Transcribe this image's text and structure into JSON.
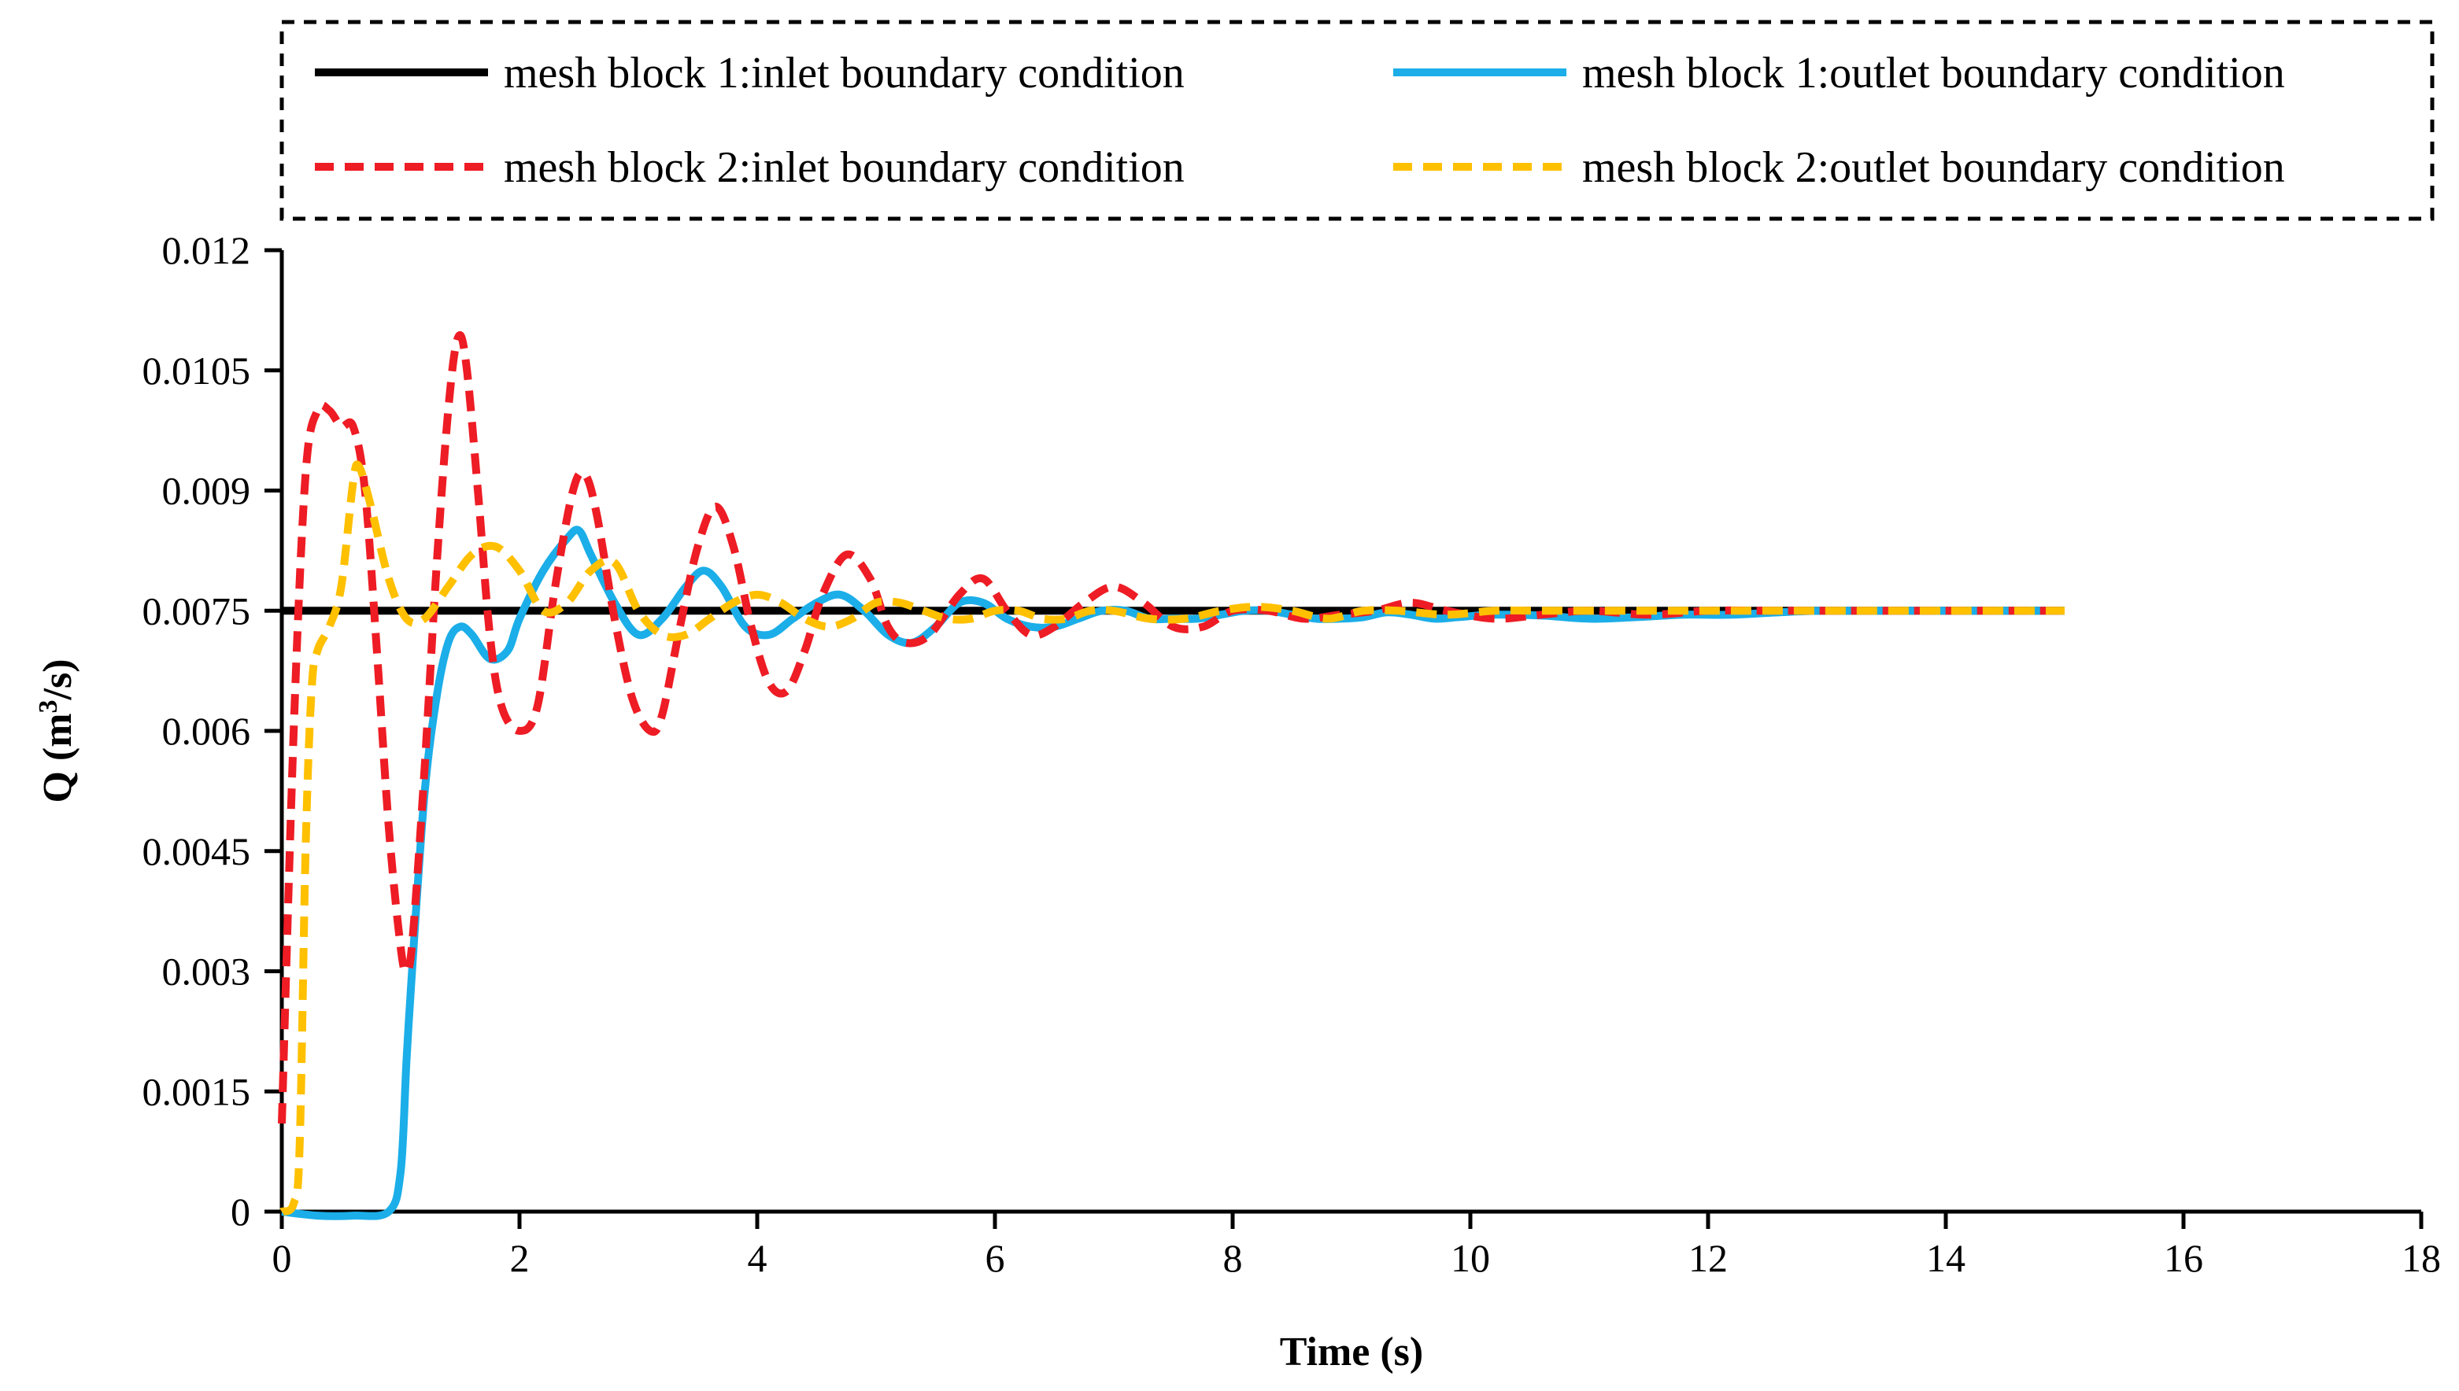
{
  "chart_data": {
    "type": "line",
    "title": "",
    "xlabel": "Time (s)",
    "ylabel_main": "Q (m",
    "ylabel_sup": "3",
    "ylabel_tail": "/s)",
    "xlim": [
      0,
      18
    ],
    "ylim": [
      0,
      0.012
    ],
    "x_ticks": [
      0,
      2,
      4,
      6,
      8,
      10,
      12,
      14,
      16,
      18
    ],
    "x_tick_labels": [
      "0",
      "2",
      "4",
      "6",
      "8",
      "10",
      "12",
      "14",
      "16",
      "18"
    ],
    "y_ticks": [
      0,
      0.0015,
      0.003,
      0.0045,
      0.006,
      0.0075,
      0.009,
      0.0105,
      0.012
    ],
    "y_tick_labels": [
      "0",
      "0.0015",
      "0.003",
      "0.0045",
      "0.006",
      "0.0075",
      "0.009",
      "0.0105",
      "0.012"
    ],
    "grid": false,
    "legend_position": "top",
    "series": [
      {
        "name": "mesh block 1:inlet boundary condition",
        "color": "#000000",
        "style": "solid",
        "x": [
          0,
          15
        ],
        "y": [
          0.0075,
          0.0075
        ]
      },
      {
        "name": "mesh block 1:outlet boundary condition",
        "color": "#1BAEE8",
        "style": "solid",
        "x": [
          0,
          0.3,
          0.6,
          0.9,
          1.0,
          1.05,
          1.1,
          1.2,
          1.3,
          1.4,
          1.5,
          1.6,
          1.75,
          1.9,
          2.0,
          2.2,
          2.4,
          2.5,
          2.6,
          2.8,
          3.0,
          3.2,
          3.4,
          3.55,
          3.7,
          3.9,
          4.1,
          4.3,
          4.5,
          4.7,
          4.9,
          5.1,
          5.3,
          5.5,
          5.7,
          5.9,
          6.1,
          6.3,
          6.5,
          6.7,
          6.9,
          7.1,
          7.3,
          7.5,
          7.7,
          7.9,
          8.1,
          8.3,
          8.5,
          8.7,
          8.9,
          9.1,
          9.3,
          9.5,
          9.7,
          9.9,
          10.2,
          10.6,
          11.0,
          11.4,
          11.8,
          12.2,
          12.6,
          13.0,
          14.0,
          15.0
        ],
        "y": [
          0.0,
          -5e-05,
          -5e-05,
          0.0,
          0.0005,
          0.0019,
          0.0031,
          0.0052,
          0.0064,
          0.0071,
          0.0073,
          0.0072,
          0.0069,
          0.007,
          0.0074,
          0.008,
          0.0084,
          0.0085,
          0.0082,
          0.0076,
          0.0072,
          0.0074,
          0.0078,
          0.008,
          0.0078,
          0.0073,
          0.0072,
          0.0074,
          0.0076,
          0.0077,
          0.0075,
          0.0072,
          0.0071,
          0.0073,
          0.0076,
          0.0076,
          0.0074,
          0.0073,
          0.0073,
          0.0074,
          0.0075,
          0.0075,
          0.0074,
          0.0074,
          0.0074,
          0.00745,
          0.0075,
          0.0075,
          0.00745,
          0.0074,
          0.0074,
          0.00742,
          0.00748,
          0.00745,
          0.0074,
          0.00742,
          0.00745,
          0.00744,
          0.0074,
          0.00742,
          0.00745,
          0.00745,
          0.00748,
          0.0075,
          0.0075,
          0.0075
        ]
      },
      {
        "name": "mesh block 2:inlet boundary condition",
        "color": "#EE1C24",
        "style": "dashed",
        "x": [
          0,
          0.1,
          0.2,
          0.3,
          0.4,
          0.5,
          0.6,
          0.7,
          0.8,
          0.9,
          1.0,
          1.05,
          1.1,
          1.2,
          1.3,
          1.4,
          1.48,
          1.55,
          1.65,
          1.75,
          1.85,
          2.0,
          2.15,
          2.3,
          2.45,
          2.55,
          2.65,
          2.8,
          2.95,
          3.1,
          3.2,
          3.35,
          3.5,
          3.65,
          3.8,
          3.95,
          4.1,
          4.25,
          4.4,
          4.55,
          4.75,
          4.95,
          5.1,
          5.25,
          5.45,
          5.7,
          5.9,
          6.1,
          6.3,
          6.5,
          6.75,
          7.0,
          7.25,
          7.5,
          7.75,
          8.0,
          8.3,
          8.6,
          8.9,
          9.2,
          9.5,
          9.8,
          10.2,
          10.6,
          11.0,
          11.5,
          12.0,
          12.5,
          13.0,
          14.0,
          15.0
        ],
        "y": [
          0.0011,
          0.006,
          0.0092,
          0.01,
          0.01,
          0.0098,
          0.0098,
          0.009,
          0.007,
          0.0048,
          0.0033,
          0.003,
          0.0034,
          0.0055,
          0.008,
          0.01,
          0.0109,
          0.0106,
          0.009,
          0.0072,
          0.0063,
          0.006,
          0.0063,
          0.0078,
          0.009,
          0.0092,
          0.0087,
          0.0074,
          0.0064,
          0.006,
          0.0062,
          0.0073,
          0.0083,
          0.0088,
          0.0083,
          0.0073,
          0.0066,
          0.0065,
          0.007,
          0.0077,
          0.0082,
          0.0079,
          0.0073,
          0.0071,
          0.0072,
          0.0077,
          0.0079,
          0.0075,
          0.0072,
          0.0073,
          0.0076,
          0.0078,
          0.0076,
          0.0073,
          0.0073,
          0.0075,
          0.0075,
          0.0074,
          0.00745,
          0.0075,
          0.0076,
          0.0075,
          0.0074,
          0.00745,
          0.0075,
          0.00745,
          0.0075,
          0.0075,
          0.0075,
          0.0075,
          0.0075
        ]
      },
      {
        "name": "mesh block 2:outlet boundary condition",
        "color": "#FFC000",
        "style": "dashed",
        "x": [
          0,
          0.1,
          0.15,
          0.2,
          0.25,
          0.3,
          0.4,
          0.5,
          0.6,
          0.65,
          0.75,
          0.9,
          1.05,
          1.2,
          1.4,
          1.6,
          1.8,
          2.0,
          2.2,
          2.4,
          2.6,
          2.8,
          3.0,
          3.2,
          3.4,
          3.6,
          3.8,
          4.0,
          4.2,
          4.4,
          4.6,
          4.8,
          5.0,
          5.2,
          5.4,
          5.6,
          5.8,
          6.0,
          6.2,
          6.4,
          6.6,
          6.8,
          7.0,
          7.3,
          7.6,
          7.9,
          8.2,
          8.5,
          8.8,
          9.1,
          9.4,
          9.8,
          10.2,
          10.6,
          11.0,
          11.5,
          12.0,
          12.5,
          13.0,
          14.0,
          15.0
        ],
        "y": [
          0.0,
          0.0001,
          0.0008,
          0.0045,
          0.0065,
          0.007,
          0.0073,
          0.0078,
          0.0091,
          0.0093,
          0.0088,
          0.0079,
          0.0074,
          0.0074,
          0.0078,
          0.0082,
          0.0083,
          0.008,
          0.0075,
          0.0076,
          0.008,
          0.0081,
          0.0075,
          0.0072,
          0.0072,
          0.0074,
          0.0076,
          0.0077,
          0.0076,
          0.0074,
          0.0073,
          0.0074,
          0.0076,
          0.0076,
          0.0075,
          0.0074,
          0.0074,
          0.0075,
          0.0075,
          0.0074,
          0.0074,
          0.0075,
          0.0075,
          0.0074,
          0.0074,
          0.0075,
          0.00755,
          0.0075,
          0.0074,
          0.0075,
          0.0075,
          0.00745,
          0.0075,
          0.0075,
          0.0075,
          0.0075,
          0.0075,
          0.0075,
          0.0075,
          0.0075,
          0.0075
        ]
      }
    ]
  }
}
